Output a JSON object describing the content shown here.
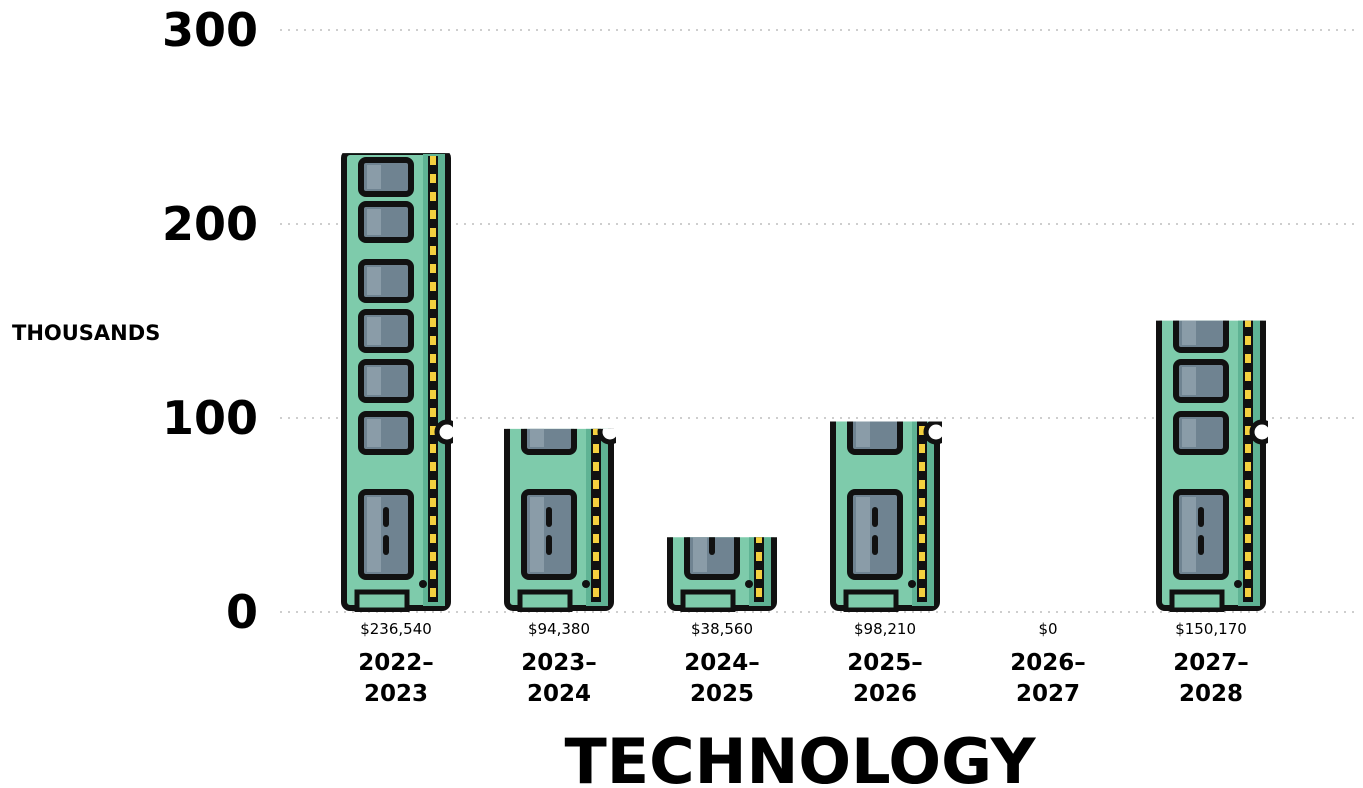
{
  "chart_data": {
    "type": "bar",
    "title": "",
    "xlabel": "TECHNOLOGY",
    "ylabel": "THOUSANDS",
    "ylim": [
      0,
      300
    ],
    "yticks": [
      "0",
      "100",
      "200",
      "300"
    ],
    "grid": true,
    "categories": [
      "2022–\n2023",
      "2023–\n2024",
      "2024–\n2025",
      "2025–\n2026",
      "2026–\n2027",
      "2027–\n2028"
    ],
    "values": [
      236540,
      94380,
      38560,
      98210,
      0,
      150170
    ],
    "value_labels": [
      "$236,540",
      "$94,380",
      "$38,560",
      "$98,210",
      "$0",
      "$150,170"
    ]
  },
  "colors": {
    "board": "#7ecbab",
    "board_shade": "#5fb394",
    "chip": "#6f8391",
    "chip_shade": "#8a9ca8",
    "outline": "#111111",
    "pins": "#f4d03f",
    "grid": "#bdbdbd"
  },
  "icons": {
    "bar_fill": "ram-stick-icon"
  }
}
